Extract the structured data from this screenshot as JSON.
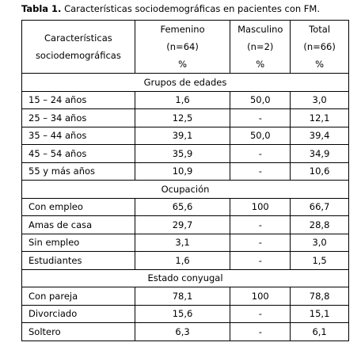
{
  "title": {
    "label": "Tabla 1.",
    "text": "Características sociodemográficas en pacientes con FM."
  },
  "table": {
    "header": [
      [
        "Características",
        "sociodemográficas"
      ],
      [
        "Femenino",
        "(n=64)",
        "%"
      ],
      [
        "Masculino",
        "(n=2)",
        "%"
      ],
      [
        "Total",
        "(n=66)",
        "%"
      ]
    ],
    "sections": [
      {
        "title": "Grupos de edades",
        "rows": [
          [
            "15 – 24 años",
            "1,6",
            "50,0",
            "3,0"
          ],
          [
            "25 – 34 años",
            "12,5",
            "-",
            "12,1"
          ],
          [
            "35 – 44 años",
            "39,1",
            "50,0",
            "39,4"
          ],
          [
            "45 – 54 años",
            "35,9",
            "-",
            "34,9"
          ],
          [
            "55 y más años",
            "10,9",
            "-",
            "10,6"
          ]
        ]
      },
      {
        "title": "Ocupación",
        "rows": [
          [
            "Con empleo",
            "65,6",
            "100",
            "66,7"
          ],
          [
            "Amas de casa",
            "29,7",
            "-",
            "28,8"
          ],
          [
            "Sin empleo",
            "3,1",
            "-",
            "3,0"
          ],
          [
            "Estudiantes",
            "1,6",
            "-",
            "1,5"
          ]
        ]
      },
      {
        "title": "Estado conyugal",
        "rows": [
          [
            "Con pareja",
            "78,1",
            "100",
            "78,8"
          ],
          [
            "Divorciado",
            "15,6",
            "-",
            "15,1"
          ],
          [
            "Soltero",
            "6,3",
            "-",
            "6,1"
          ]
        ]
      }
    ]
  }
}
